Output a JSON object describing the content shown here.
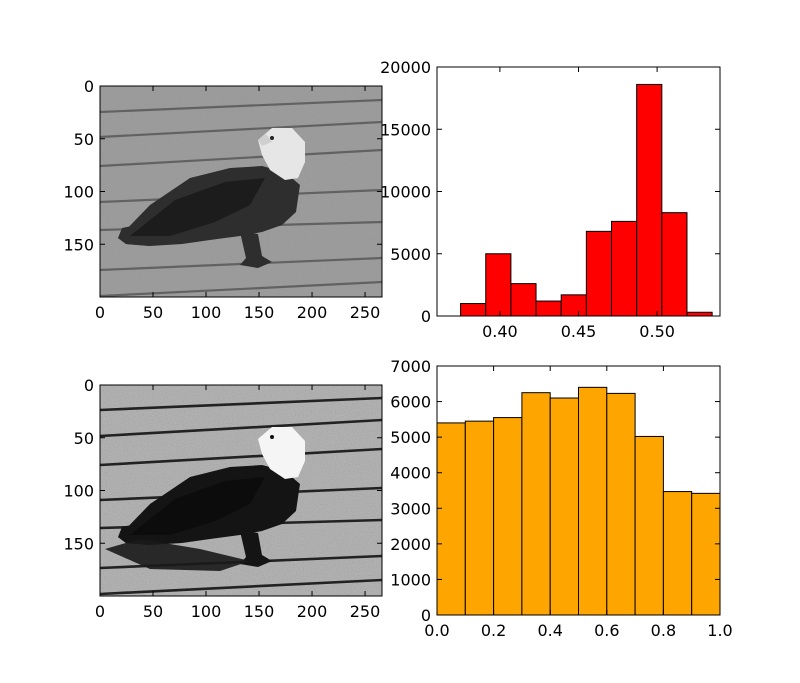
{
  "chart_data": [
    {
      "type": "image",
      "title": "",
      "xlim": [
        0,
        266
      ],
      "ylim": [
        200,
        0
      ],
      "xticks": [
        0,
        50,
        100,
        150,
        200,
        250
      ],
      "yticks": [
        0,
        50,
        100,
        150
      ],
      "content": "grayscale photograph of a bald eagle standing on a wooden deck"
    },
    {
      "type": "bar",
      "title": "",
      "color": "#ff0000",
      "xlim": [
        0.36,
        0.54
      ],
      "ylim": [
        0,
        20000
      ],
      "xticks": [
        0.4,
        0.45,
        0.5
      ],
      "xtick_labels": [
        "0.40",
        "0.45",
        "0.50"
      ],
      "yticks": [
        0,
        5000,
        10000,
        15000,
        20000
      ],
      "bin_edges": [
        0.375,
        0.391,
        0.407,
        0.423,
        0.439,
        0.455,
        0.471,
        0.487,
        0.503,
        0.519,
        0.535
      ],
      "values": [
        1000,
        5000,
        2600,
        1200,
        1700,
        6800,
        7600,
        18600,
        8300,
        300
      ]
    },
    {
      "type": "image",
      "title": "",
      "xlim": [
        0,
        266
      ],
      "ylim": [
        200,
        0
      ],
      "xticks": [
        0,
        50,
        100,
        150,
        200,
        250
      ],
      "yticks": [
        0,
        50,
        100,
        150
      ],
      "content": "histogram-equalized, high-contrast grayscale version of the same eagle photograph"
    },
    {
      "type": "bar",
      "title": "",
      "color": "#ffa500",
      "xlim": [
        0.0,
        1.0
      ],
      "ylim": [
        0,
        7000
      ],
      "xticks": [
        0.0,
        0.2,
        0.4,
        0.6,
        0.8,
        1.0
      ],
      "xtick_labels": [
        "0.0",
        "0.2",
        "0.4",
        "0.6",
        "0.8",
        "1.0"
      ],
      "yticks": [
        0,
        1000,
        2000,
        3000,
        4000,
        5000,
        6000,
        7000
      ],
      "bin_edges": [
        0.0,
        0.1,
        0.2,
        0.3,
        0.4,
        0.5,
        0.6,
        0.7,
        0.8,
        0.9,
        1.0
      ],
      "values": [
        5400,
        5450,
        5550,
        6250,
        6100,
        6400,
        6230,
        5020,
        3470,
        3420
      ]
    }
  ]
}
